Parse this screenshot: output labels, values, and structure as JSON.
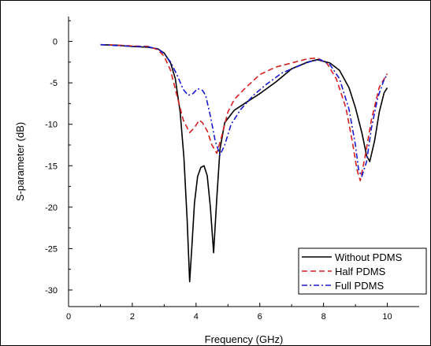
{
  "chart_data": {
    "type": "line",
    "title": "",
    "xlabel": "Frequency (GHz)",
    "ylabel": "S-parameter (dB)",
    "xlim": [
      0,
      11
    ],
    "ylim": [
      -32,
      3
    ],
    "x_ticks": [
      0,
      2,
      4,
      6,
      8,
      10
    ],
    "y_ticks": [
      0,
      -5,
      -10,
      -15,
      -20,
      -25,
      -30
    ],
    "x_tick_labels": [
      "0",
      "2",
      "4",
      "6",
      "8",
      "10"
    ],
    "y_tick_labels": [
      "0",
      "-5",
      "-10",
      "-15",
      "-20",
      "-25",
      "-30"
    ],
    "grid": false,
    "legend_position": "bottom-right",
    "series": [
      {
        "name": "Without PDMS",
        "color": "#000000",
        "style": "solid",
        "points": [
          [
            1.0,
            -0.4
          ],
          [
            1.5,
            -0.45
          ],
          [
            2.0,
            -0.6
          ],
          [
            2.5,
            -0.7
          ],
          [
            2.8,
            -0.9
          ],
          [
            3.0,
            -1.4
          ],
          [
            3.2,
            -2.6
          ],
          [
            3.35,
            -4.5
          ],
          [
            3.5,
            -8.5
          ],
          [
            3.62,
            -14.0
          ],
          [
            3.72,
            -21.5
          ],
          [
            3.8,
            -29.0
          ],
          [
            3.88,
            -24.0
          ],
          [
            3.95,
            -19.5
          ],
          [
            4.05,
            -16.3
          ],
          [
            4.15,
            -15.2
          ],
          [
            4.25,
            -15.0
          ],
          [
            4.35,
            -16.2
          ],
          [
            4.45,
            -20.0
          ],
          [
            4.55,
            -25.5
          ],
          [
            4.65,
            -19.0
          ],
          [
            4.75,
            -13.0
          ],
          [
            4.9,
            -9.8
          ],
          [
            5.2,
            -8.3
          ],
          [
            5.6,
            -7.3
          ],
          [
            6.0,
            -6.3
          ],
          [
            6.5,
            -4.9
          ],
          [
            7.0,
            -3.3
          ],
          [
            7.5,
            -2.5
          ],
          [
            7.8,
            -2.2
          ],
          [
            8.2,
            -2.6
          ],
          [
            8.5,
            -3.5
          ],
          [
            8.8,
            -5.6
          ],
          [
            9.0,
            -8.0
          ],
          [
            9.2,
            -11.0
          ],
          [
            9.35,
            -13.8
          ],
          [
            9.45,
            -14.5
          ],
          [
            9.6,
            -12.0
          ],
          [
            9.75,
            -8.5
          ],
          [
            9.9,
            -6.2
          ],
          [
            10.0,
            -5.6
          ]
        ]
      },
      {
        "name": "Half PDMS",
        "color": "#d42020",
        "style": "dashed",
        "points": [
          [
            1.0,
            -0.4
          ],
          [
            1.5,
            -0.45
          ],
          [
            2.0,
            -0.55
          ],
          [
            2.5,
            -0.6
          ],
          [
            2.8,
            -1.0
          ],
          [
            3.0,
            -1.8
          ],
          [
            3.2,
            -3.5
          ],
          [
            3.4,
            -6.5
          ],
          [
            3.6,
            -9.5
          ],
          [
            3.8,
            -11.0
          ],
          [
            3.95,
            -10.4
          ],
          [
            4.1,
            -9.5
          ],
          [
            4.2,
            -9.8
          ],
          [
            4.35,
            -10.8
          ],
          [
            4.5,
            -12.5
          ],
          [
            4.65,
            -13.5
          ],
          [
            4.8,
            -11.5
          ],
          [
            5.0,
            -8.5
          ],
          [
            5.2,
            -7.0
          ],
          [
            5.5,
            -5.8
          ],
          [
            6.0,
            -4.0
          ],
          [
            6.5,
            -3.1
          ],
          [
            7.0,
            -2.6
          ],
          [
            7.5,
            -2.1
          ],
          [
            7.8,
            -2.0
          ],
          [
            8.1,
            -2.6
          ],
          [
            8.4,
            -4.5
          ],
          [
            8.7,
            -8.0
          ],
          [
            8.9,
            -12.0
          ],
          [
            9.05,
            -15.5
          ],
          [
            9.15,
            -16.8
          ],
          [
            9.3,
            -14.0
          ],
          [
            9.5,
            -9.5
          ],
          [
            9.75,
            -5.5
          ],
          [
            10.0,
            -3.9
          ]
        ]
      },
      {
        "name": "Full PDMS",
        "color": "#1a1acc",
        "style": "dashdot",
        "points": [
          [
            1.0,
            -0.4
          ],
          [
            1.5,
            -0.5
          ],
          [
            2.0,
            -0.6
          ],
          [
            2.5,
            -0.65
          ],
          [
            2.8,
            -0.9
          ],
          [
            3.0,
            -1.5
          ],
          [
            3.2,
            -2.5
          ],
          [
            3.4,
            -4.0
          ],
          [
            3.6,
            -5.8
          ],
          [
            3.75,
            -6.5
          ],
          [
            3.9,
            -6.3
          ],
          [
            4.05,
            -5.7
          ],
          [
            4.2,
            -5.9
          ],
          [
            4.3,
            -6.5
          ],
          [
            4.45,
            -9.0
          ],
          [
            4.6,
            -12.0
          ],
          [
            4.75,
            -13.7
          ],
          [
            4.9,
            -12.5
          ],
          [
            5.1,
            -10.0
          ],
          [
            5.4,
            -8.2
          ],
          [
            5.8,
            -6.5
          ],
          [
            6.2,
            -5.2
          ],
          [
            6.7,
            -3.8
          ],
          [
            7.2,
            -3.0
          ],
          [
            7.6,
            -2.4
          ],
          [
            7.9,
            -2.2
          ],
          [
            8.2,
            -2.8
          ],
          [
            8.5,
            -4.5
          ],
          [
            8.8,
            -8.2
          ],
          [
            9.0,
            -12.5
          ],
          [
            9.1,
            -15.5
          ],
          [
            9.2,
            -16.3
          ],
          [
            9.35,
            -14.5
          ],
          [
            9.5,
            -10.5
          ],
          [
            9.7,
            -6.8
          ],
          [
            9.9,
            -4.6
          ],
          [
            10.0,
            -4.0
          ]
        ]
      }
    ]
  }
}
